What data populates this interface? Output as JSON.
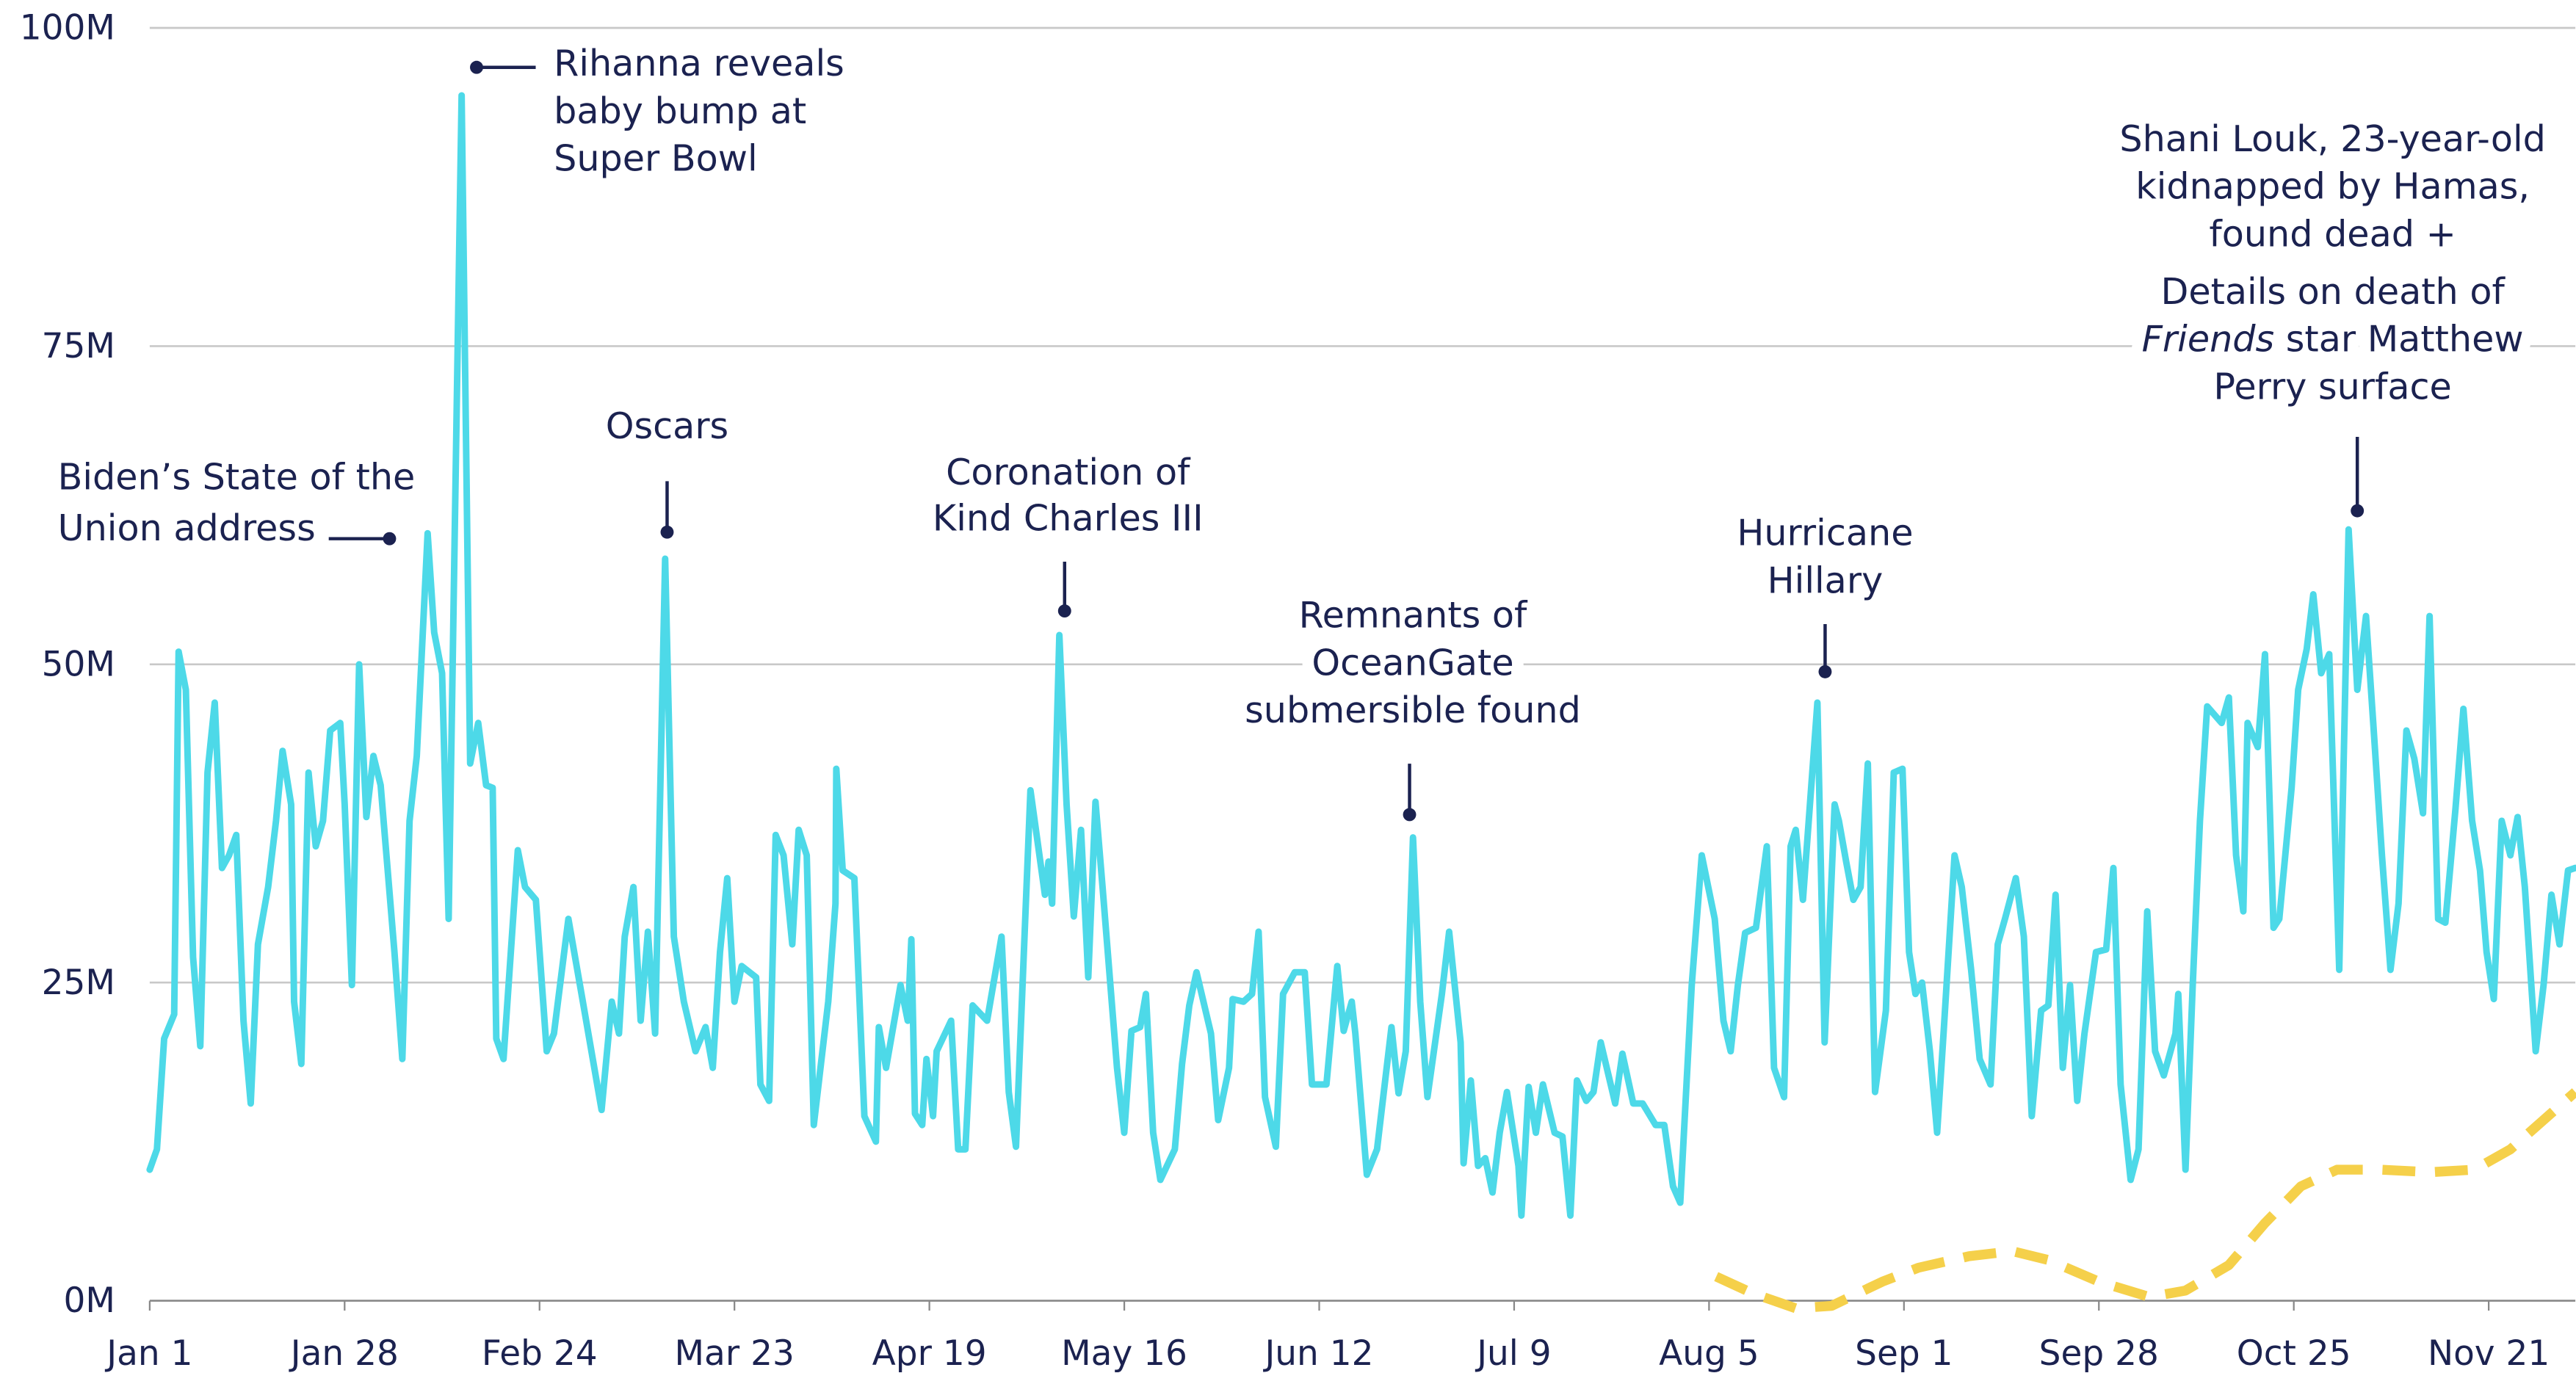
{
  "chart_data": {
    "type": "line",
    "xlim": [
      0,
      336
    ],
    "ylim": [
      0,
      100
    ],
    "grid": true,
    "xticks": [
      {
        "value": 0,
        "label": "Jan 1"
      },
      {
        "value": 27,
        "label": "Jan 28"
      },
      {
        "value": 54,
        "label": "Feb 24"
      },
      {
        "value": 81,
        "label": "Mar 23"
      },
      {
        "value": 108,
        "label": "Apr 19"
      },
      {
        "value": 135,
        "label": "May 16"
      },
      {
        "value": 162,
        "label": "Jun 12"
      },
      {
        "value": 189,
        "label": "Jul 9"
      },
      {
        "value": 216,
        "label": "Aug 5"
      },
      {
        "value": 243,
        "label": "Sep 1"
      },
      {
        "value": 270,
        "label": "Sep 28"
      },
      {
        "value": 297,
        "label": "Oct 25"
      },
      {
        "value": 324,
        "label": "Nov 21"
      }
    ],
    "yticks": [
      {
        "value": 0,
        "label": "0M"
      },
      {
        "value": 25,
        "label": "25M"
      },
      {
        "value": 50,
        "label": "50M"
      },
      {
        "value": 75,
        "label": "75M"
      },
      {
        "value": 100,
        "label": "100M"
      }
    ],
    "series": [
      {
        "color": "#4dd9e8",
        "style": "solid",
        "x": [
          0,
          1,
          2,
          3.4,
          4,
          5,
          6,
          7,
          8,
          9,
          10,
          11,
          12,
          13,
          14,
          15,
          16.4,
          17.5,
          18.4,
          19.6,
          20,
          21,
          22,
          23,
          24,
          25,
          26.4,
          27,
          28,
          29,
          30,
          31,
          32,
          33.9,
          35,
          36,
          37,
          38.5,
          39.4,
          40.5,
          41.4,
          43.2,
          44.4,
          45.5,
          46.6,
          47.5,
          48,
          49,
          51,
          52,
          53.5,
          55,
          56,
          58,
          60,
          62.6,
          64,
          65,
          65.8,
          67,
          68,
          69,
          70,
          71.4,
          72.6,
          74,
          75.6,
          77,
          78,
          79,
          80,
          81,
          82,
          84,
          84.6,
          85.8,
          86.7,
          87.8,
          89,
          89.9,
          91,
          92,
          94,
          95,
          95.1,
          96,
          97.6,
          99,
          100.6,
          101,
          102,
          104,
          105,
          105.5,
          106,
          107,
          107.6,
          108.5,
          109,
          111,
          112,
          113,
          114,
          116,
          118,
          119,
          120,
          122,
          124,
          124.5,
          125,
          126,
          127,
          128,
          129,
          130,
          131,
          132,
          134,
          135,
          136,
          137.2,
          138,
          139,
          140,
          142,
          143,
          144,
          145,
          147,
          148,
          149.5,
          150,
          151.5,
          152.7,
          153.6,
          154.5,
          156,
          157,
          158.6,
          160,
          161,
          163,
          164.5,
          165.4,
          166.5,
          167,
          168.6,
          170,
          172,
          173,
          174,
          175,
          176,
          177,
          179,
          180,
          181.6,
          182,
          183,
          184,
          185,
          186,
          187,
          188,
          189.6,
          190,
          191,
          192,
          193,
          194.6,
          195.7,
          196.8,
          197.7,
          199,
          200,
          201,
          203,
          204,
          205.5,
          206.8,
          208.6,
          209.8,
          211,
          212,
          213.6,
          215,
          216.8,
          218,
          219,
          220,
          221,
          222.5,
          224,
          225,
          226.4,
          227.3,
          228,
          229,
          231,
          232,
          233.4,
          234,
          235,
          236,
          237,
          238,
          239,
          240.5,
          241.6,
          242.8,
          243.7,
          244.6,
          245.5,
          246.6,
          247.6,
          248.5,
          250,
          251,
          252.3,
          253.5,
          255,
          256,
          257,
          258.5,
          259.6,
          260.7,
          262,
          263,
          264,
          265,
          266,
          267,
          268,
          269.6,
          271,
          272,
          273,
          274.4,
          275.5,
          276.7,
          277.8,
          279,
          280.6,
          281,
          282,
          283,
          284,
          285,
          287,
          288,
          289,
          290,
          290.6,
          292,
          293,
          294.2,
          295,
          296.7,
          297.6,
          298.8,
          299.7,
          300.8,
          301.9,
          303.3,
          304.6,
          305.8,
          307,
          308,
          309.2,
          310.4,
          311.5,
          312.6,
          313.7,
          314.9,
          315.8,
          317,
          318,
          319.4,
          320.5,
          321.7,
          322.8,
          323.7,
          324.7,
          325.8,
          327,
          328,
          329,
          330.5,
          331.6,
          332.7,
          333.8,
          335,
          336
        ],
        "values": [
          10.3,
          11.9,
          20.6,
          22.5,
          51,
          48,
          27,
          20,
          41.5,
          47,
          34,
          35,
          36.6,
          22,
          15.5,
          28,
          32.5,
          37.7,
          43.2,
          39,
          23.5,
          18.6,
          41.5,
          35.7,
          37.7,
          44.8,
          45.4,
          39,
          24.8,
          50,
          38,
          42.8,
          40.5,
          27.4,
          19,
          37.7,
          42.8,
          60.3,
          52.5,
          49.3,
          30,
          94.7,
          42.2,
          45.4,
          40.5,
          40.3,
          20.6,
          19,
          35.4,
          32.5,
          31.5,
          19.6,
          21,
          30,
          23.5,
          15,
          23.5,
          21,
          28.6,
          32.5,
          22,
          29,
          21,
          58.3,
          28.6,
          23.5,
          19.6,
          21.5,
          18.3,
          27.4,
          33.2,
          23.5,
          26.3,
          25.4,
          17,
          15.7,
          36.6,
          35,
          28,
          37,
          35,
          13.8,
          23.5,
          31.2,
          41.8,
          33.8,
          33.2,
          14.5,
          12.5,
          21.5,
          18.3,
          24.8,
          22,
          28.4,
          14.7,
          13.8,
          19,
          14.5,
          19.6,
          22,
          11.9,
          11.9,
          23.2,
          22,
          28.6,
          16.4,
          12.1,
          40.1,
          31.9,
          34.5,
          31.2,
          52.3,
          39,
          30.2,
          37,
          25.4,
          39.2,
          32.5,
          18.3,
          13.2,
          21.2,
          21.5,
          24.1,
          13.2,
          9.5,
          11.9,
          18.6,
          23.2,
          25.8,
          21,
          14.2,
          18.3,
          23.7,
          23.5,
          24.1,
          29,
          16,
          12.1,
          24.1,
          25.8,
          25.8,
          17,
          17,
          26.3,
          21.2,
          23.5,
          21,
          9.9,
          11.9,
          21.5,
          16.3,
          19.6,
          36.4,
          23.5,
          16,
          24.1,
          29,
          20.3,
          10.8,
          17.3,
          10.6,
          11.2,
          8.5,
          13.2,
          16.4,
          10.6,
          6.7,
          16.8,
          13.2,
          17,
          13.2,
          12.9,
          6.7,
          17.3,
          15.7,
          16.4,
          20.3,
          15.5,
          19.4,
          15.5,
          15.5,
          13.8,
          13.8,
          9,
          7.7,
          24.8,
          35,
          30,
          22,
          19.6,
          24.8,
          28.9,
          29.3,
          35.7,
          18.3,
          16,
          35.7,
          37,
          31.5,
          47,
          20.3,
          39,
          37.7,
          34.5,
          31.5,
          32.5,
          42.2,
          16.4,
          22.8,
          41.5,
          41.8,
          27.4,
          24.1,
          25,
          19.6,
          13.2,
          21.2,
          35,
          32.5,
          26,
          19,
          17,
          28,
          30,
          33.2,
          28.6,
          14.5,
          22.8,
          23.2,
          31.9,
          18.3,
          24.8,
          15.7,
          21,
          27.4,
          27.6,
          34,
          17,
          9.5,
          11.9,
          30.6,
          19.6,
          17.7,
          21,
          24.1,
          10.3,
          24.8,
          37.7,
          46.7,
          45.4,
          47.4,
          35,
          30.6,
          45.4,
          43.5,
          50.8,
          29.3,
          30,
          40.3,
          48,
          51.2,
          55.5,
          49.3,
          50.8,
          26,
          60.6,
          48,
          53.8,
          45.4,
          35,
          26,
          31.2,
          44.8,
          42.6,
          38.3,
          53.8,
          30,
          29.7,
          38.7,
          46.5,
          37.7,
          33.8,
          27.4,
          23.7,
          37.7,
          35,
          38,
          32.5,
          19.6,
          24.8,
          31.9,
          28,
          33.8,
          34
        ]
      },
      {
        "color": "#f5d04a",
        "style": "dashed",
        "x": [
          217,
          222,
          228,
          233,
          240,
          245,
          252,
          258,
          263,
          270,
          277,
          282,
          288,
          293,
          298,
          303,
          309,
          316,
          322,
          327,
          336
        ],
        "values": [
          1.9,
          0.6,
          -0.6,
          -0.4,
          1.5,
          2.6,
          3.5,
          3.9,
          3.2,
          1.5,
          0.3,
          0.8,
          2.8,
          6.1,
          9,
          10.3,
          10.3,
          10.1,
          10.3,
          11.9,
          16.4
        ]
      }
    ],
    "annotations": [
      {
        "lines": [
          "Biden’s State of the",
          "Union address"
        ]
      },
      {
        "lines": [
          "Rihanna reveals",
          "baby bump at",
          "Super Bowl"
        ]
      },
      {
        "lines": [
          "Oscars"
        ]
      },
      {
        "lines": [
          "Coronation of",
          "Kind Charles III"
        ]
      },
      {
        "lines": [
          "Remnants of",
          "OceanGate",
          "submersible found"
        ]
      },
      {
        "lines": [
          "Hurricane",
          "Hillary"
        ]
      },
      {
        "lines": [
          "Shani Louk, 23-year-old",
          "kidnapped by Hamas,",
          "found dead  +",
          "Details on death of",
          [
            "Friends",
            " star Matthew"
          ],
          "Perry surface"
        ]
      }
    ]
  }
}
